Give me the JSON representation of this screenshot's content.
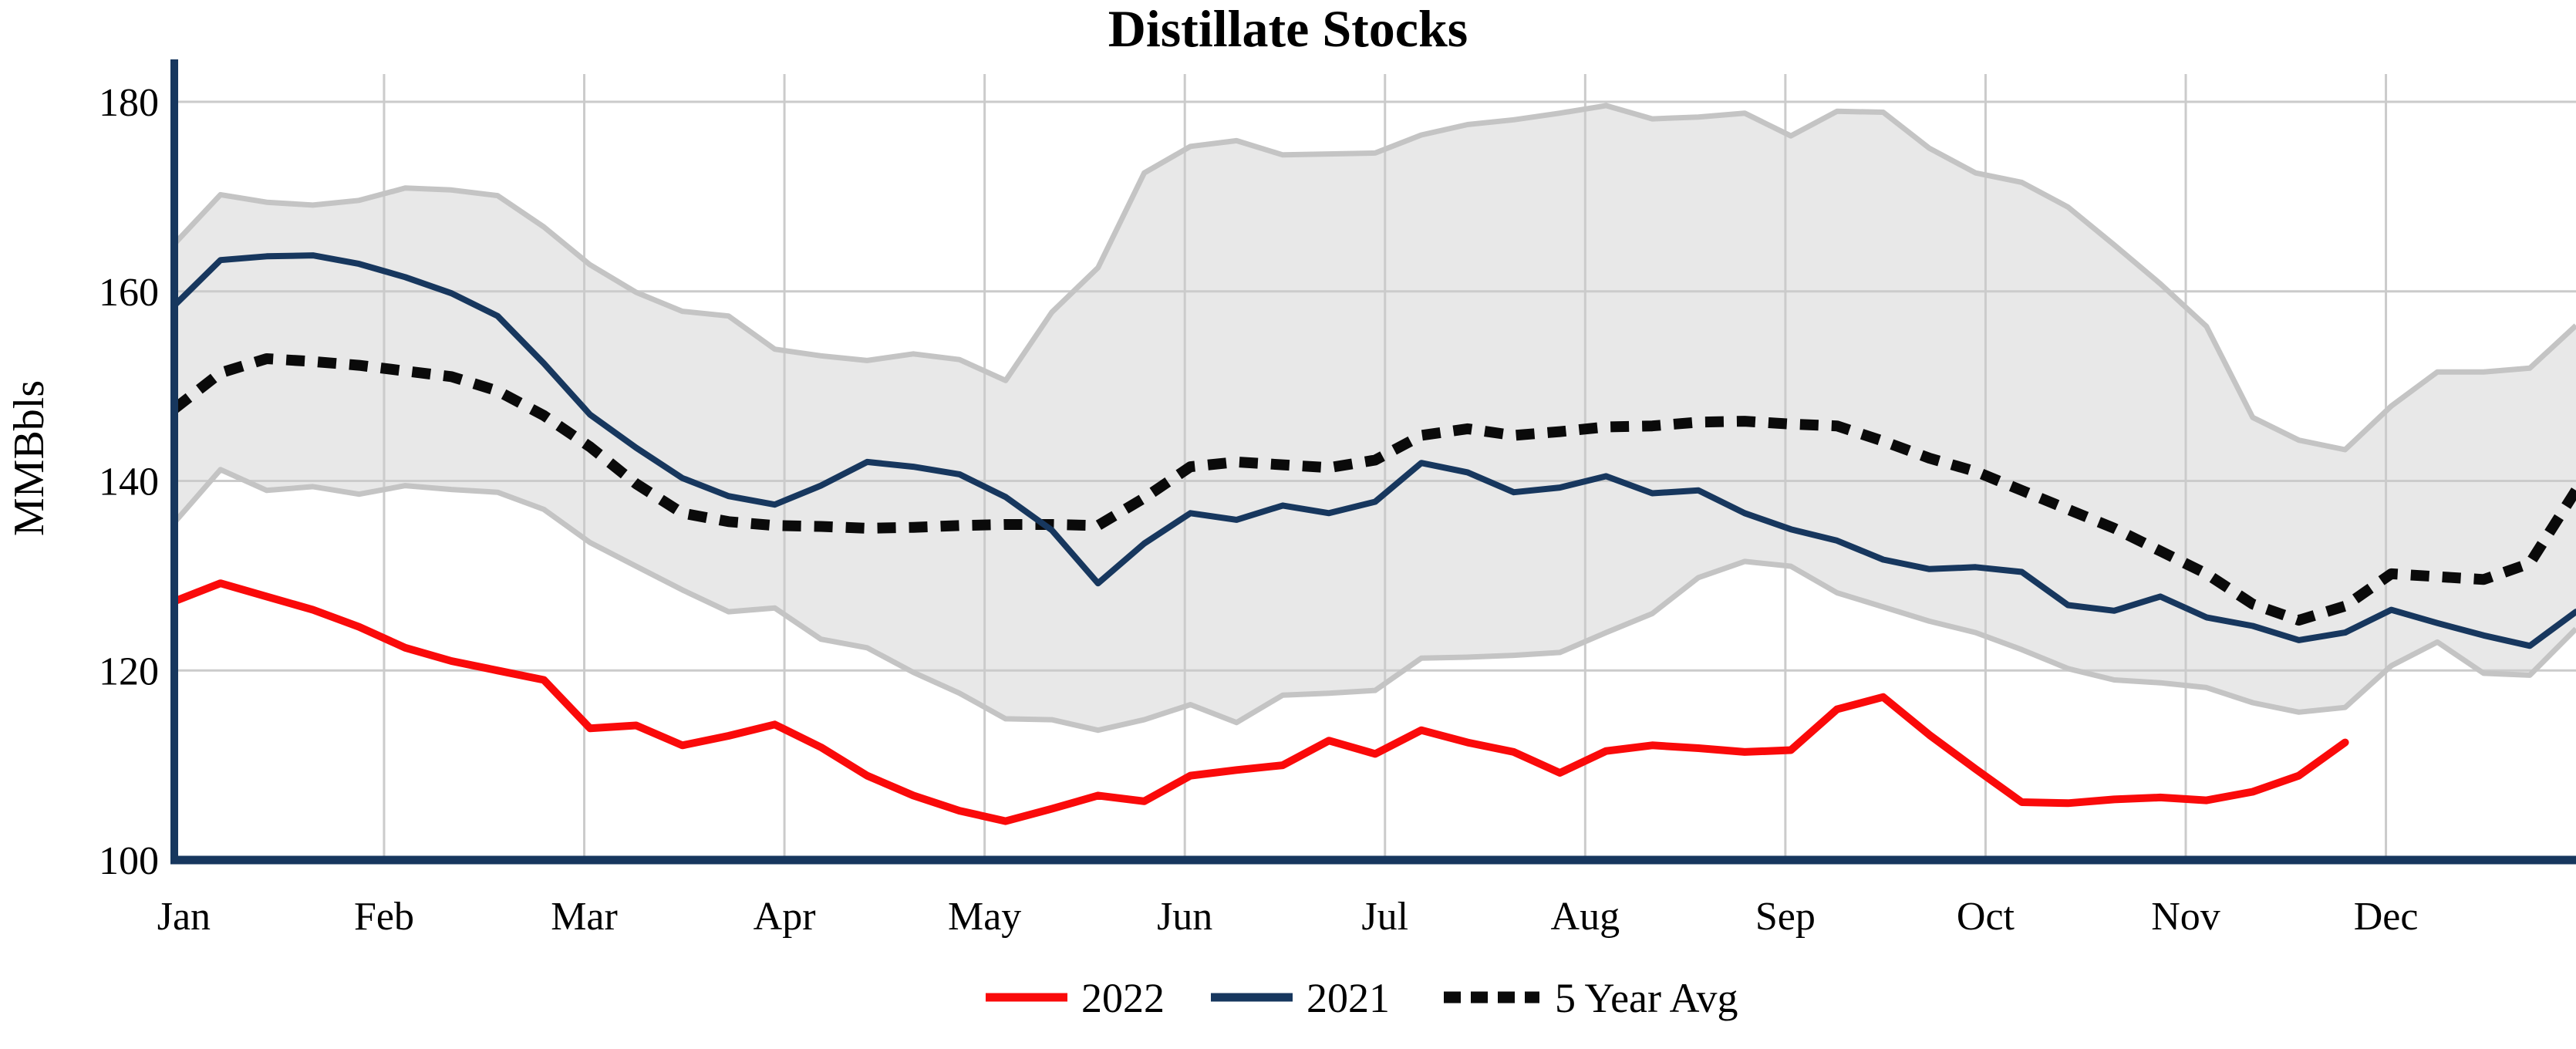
{
  "title": "Distillate Stocks",
  "ylabel": "MMBbls",
  "legend": [
    {
      "label": "2022",
      "color": "#FA0A0A",
      "style": "solid"
    },
    {
      "label": "2021",
      "color": "#17375E",
      "style": "solid"
    },
    {
      "label": "5 Year Avg",
      "color": "#0A0A0A",
      "style": "dotted"
    }
  ],
  "chart_data": {
    "type": "line",
    "title": "Distillate Stocks",
    "xlabel": "",
    "ylabel": "MMBbls",
    "ylim": [
      100,
      185.6
    ],
    "yticks": [
      100,
      120,
      140,
      160,
      180
    ],
    "grid": true,
    "legend_position": "bottom",
    "x_months": [
      "Jan",
      "Feb",
      "Mar",
      "Apr",
      "May",
      "Jun",
      "Jul",
      "Aug",
      "Sep",
      "Oct",
      "Nov",
      "Dec"
    ],
    "x_unit": "weekly points, Jan through Dec",
    "series": [
      {
        "name": "2022",
        "color": "#FA0A0A",
        "width": 10,
        "dash": null,
        "values": [
          127.3,
          129.2,
          127.8,
          126.4,
          124.6,
          122.4,
          121.0,
          120.0,
          119.0,
          113.9,
          114.2,
          112.1,
          113.1,
          114.3,
          111.9,
          108.9,
          106.8,
          105.2,
          104.1,
          105.4,
          106.8,
          106.2,
          108.9,
          109.5,
          110.0,
          112.6,
          111.2,
          113.7,
          112.4,
          111.4,
          109.2,
          111.5,
          112.1,
          111.8,
          111.4,
          111.6,
          115.9,
          117.2,
          113.2,
          109.6,
          106.1,
          106.0,
          106.4,
          106.6,
          106.3,
          107.2,
          108.9,
          112.4
        ]
      },
      {
        "name": "2021",
        "color": "#17375E",
        "width": 8,
        "dash": null,
        "values": [
          158.5,
          163.3,
          163.7,
          163.8,
          162.9,
          161.5,
          159.8,
          157.4,
          152.4,
          147.0,
          143.5,
          140.3,
          138.4,
          137.5,
          139.5,
          142.0,
          141.5,
          140.7,
          138.3,
          134.8,
          129.2,
          133.4,
          136.6,
          135.9,
          137.4,
          136.6,
          137.8,
          141.9,
          140.9,
          138.8,
          139.3,
          140.5,
          138.7,
          139.0,
          136.6,
          134.9,
          133.7,
          131.7,
          130.7,
          130.9,
          130.4,
          126.9,
          126.3,
          127.8,
          125.6,
          124.7,
          123.2,
          124.0,
          126.4,
          125.0,
          123.7,
          122.6,
          126.2
        ]
      },
      {
        "name": "5 Year Avg",
        "color": "#0A0A0A",
        "width": 14,
        "dash": "24 17",
        "values": [
          147.6,
          151.4,
          152.9,
          152.6,
          152.2,
          151.6,
          151.0,
          149.5,
          146.9,
          143.6,
          139.7,
          136.6,
          135.7,
          135.3,
          135.2,
          135.0,
          135.1,
          135.3,
          135.4,
          135.4,
          135.3,
          138.2,
          141.5,
          142.0,
          141.7,
          141.4,
          142.2,
          144.8,
          145.5,
          144.8,
          145.2,
          145.7,
          145.8,
          146.2,
          146.3,
          146.0,
          145.8,
          144.2,
          142.4,
          141.0,
          139.0,
          137.0,
          135.0,
          132.6,
          130.2,
          127.0,
          125.3,
          126.8,
          130.2,
          129.9,
          129.6,
          131.3,
          139.0
        ]
      }
    ],
    "band": {
      "name": "5 Year Range",
      "fill": "#E8E8E8",
      "edge_color": "#C4C4C4",
      "upper": [
        165.0,
        170.2,
        169.4,
        169.1,
        169.6,
        170.9,
        170.7,
        170.1,
        166.8,
        162.8,
        159.9,
        157.9,
        157.4,
        153.9,
        153.2,
        152.7,
        153.4,
        152.8,
        150.6,
        157.8,
        162.5,
        172.5,
        175.3,
        175.9,
        174.4,
        174.5,
        174.6,
        176.5,
        177.6,
        178.1,
        178.8,
        179.6,
        178.2,
        178.4,
        178.8,
        176.4,
        179.0,
        178.9,
        175.1,
        172.5,
        171.5,
        168.9,
        164.9,
        160.8,
        156.3,
        146.7,
        144.3,
        143.3,
        147.9,
        151.5,
        151.5,
        151.9,
        156.4
      ],
      "lower": [
        135.6,
        141.2,
        139.0,
        139.4,
        138.6,
        139.5,
        139.1,
        138.8,
        137.0,
        133.5,
        131.0,
        128.5,
        126.2,
        126.6,
        123.3,
        122.4,
        119.8,
        117.6,
        114.9,
        114.8,
        113.7,
        114.8,
        116.4,
        114.5,
        117.4,
        117.6,
        117.9,
        121.3,
        121.4,
        121.6,
        121.9,
        124.0,
        126.0,
        129.8,
        131.5,
        131.0,
        128.2,
        126.7,
        125.2,
        124.0,
        122.2,
        120.2,
        119.0,
        118.7,
        118.2,
        116.6,
        115.6,
        116.1,
        120.5,
        123.0,
        119.7,
        119.5,
        124.4
      ]
    },
    "colors": {
      "axis": "#17375E",
      "gridline": "#CBCBCB",
      "background": "#FFFFFF",
      "text": "#000000"
    }
  }
}
